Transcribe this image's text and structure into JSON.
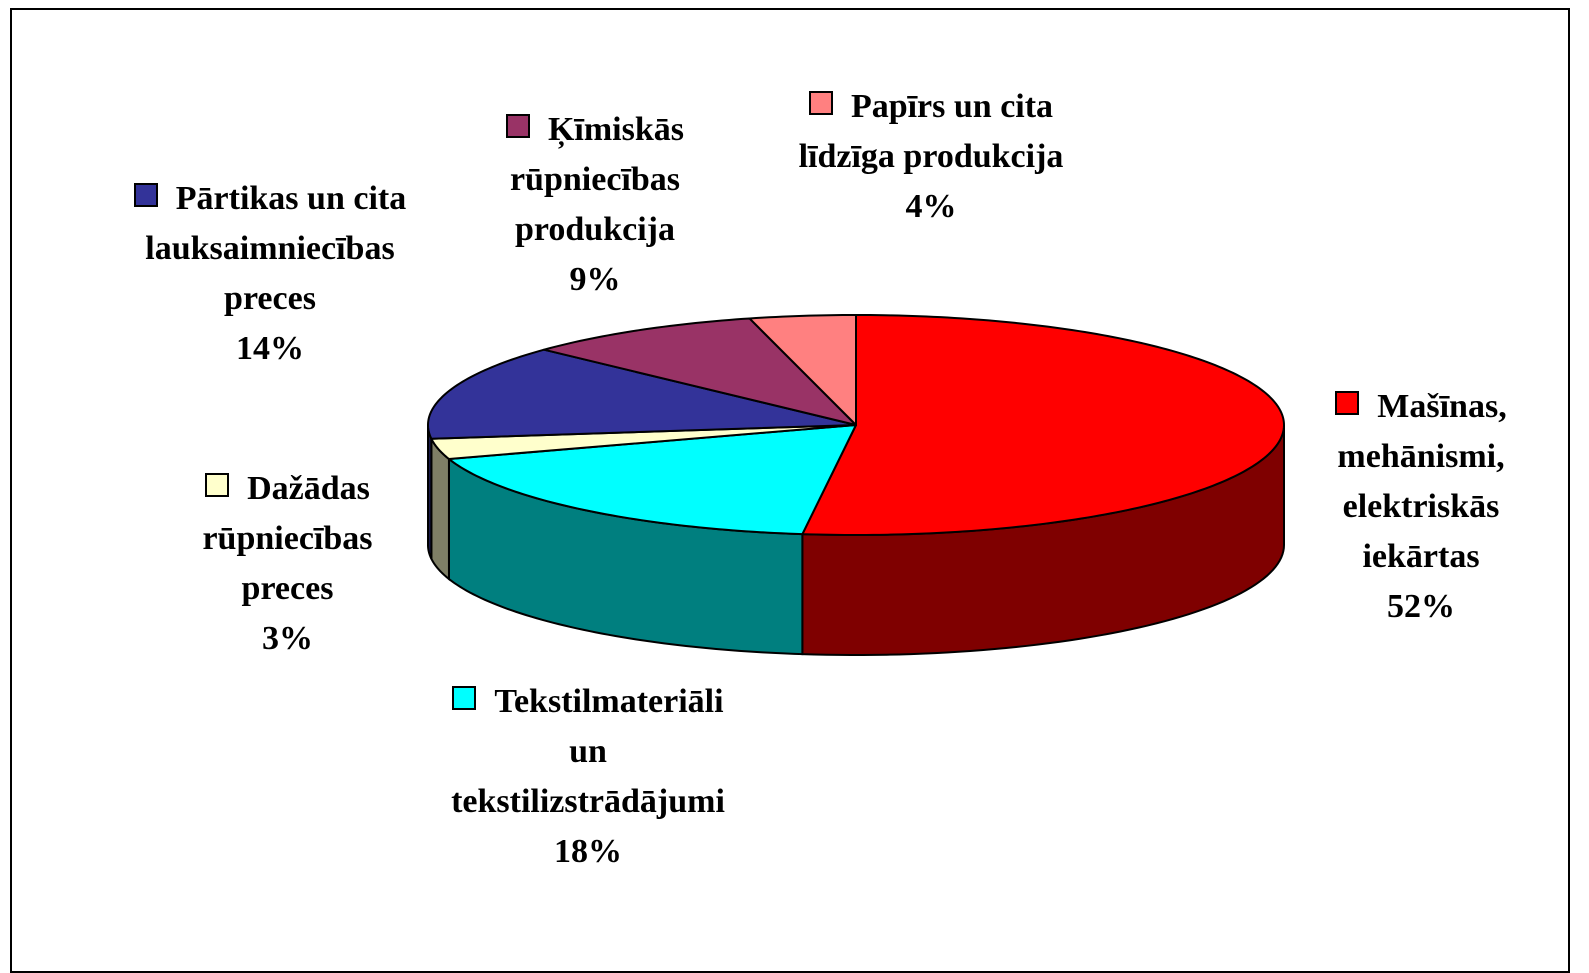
{
  "chart_data": {
    "type": "pie3d",
    "categories": [
      "Mašīnas, mehānismi, elektriskās iekārtas",
      "Tekstilmateriāli un tekstilizstrādājumi",
      "Dažādas rūpniecības preces",
      "Pārtikas un cita lauksaimniecības preces",
      "Ķīmiskās rūpniecības produkcija",
      "Papīrs un cita līdzīga produkcija"
    ],
    "values": [
      52,
      18,
      3,
      14,
      9,
      4
    ],
    "value_labels": [
      "52%",
      "18%",
      "3%",
      "14%",
      "9%",
      "4%"
    ],
    "colors": [
      "#ff0000",
      "#00ffff",
      "#ffffcc",
      "#333399",
      "#993366",
      "#ff8080"
    ]
  }
}
